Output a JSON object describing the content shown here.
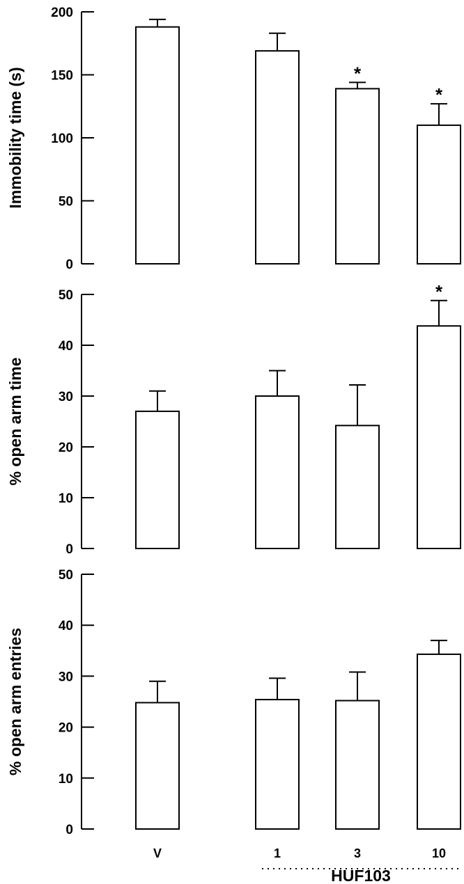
{
  "chart_data": [
    {
      "type": "bar",
      "title": "",
      "ylabel": "Immobility time (s)",
      "ylim": [
        0,
        200
      ],
      "yticks": [
        0,
        50,
        100,
        150,
        200
      ],
      "categories": [
        "V",
        "1",
        "3",
        "10"
      ],
      "values": [
        188,
        169,
        139,
        110
      ],
      "errors": [
        6,
        14,
        5,
        17
      ],
      "significance": [
        "",
        "",
        "*",
        "*"
      ],
      "bar_fill": "#ffffff",
      "bar_stroke": "#000000"
    },
    {
      "type": "bar",
      "title": "",
      "ylabel": "% open arm time",
      "ylim": [
        0,
        50
      ],
      "yticks": [
        0,
        10,
        20,
        30,
        40,
        50
      ],
      "categories": [
        "V",
        "1",
        "3",
        "10"
      ],
      "values": [
        27,
        30,
        24.2,
        43.8
      ],
      "errors": [
        4,
        5,
        8,
        5
      ],
      "significance": [
        "",
        "",
        "",
        "*"
      ],
      "bar_fill": "#ffffff",
      "bar_stroke": "#000000"
    },
    {
      "type": "bar",
      "title": "",
      "ylabel": "% open arm entries",
      "ylim": [
        0,
        50
      ],
      "yticks": [
        0,
        10,
        20,
        30,
        40,
        50
      ],
      "categories": [
        "V",
        "1",
        "3",
        "10"
      ],
      "values": [
        24.8,
        25.4,
        25.2,
        34.3
      ],
      "errors": [
        4.2,
        4.2,
        5.6,
        2.7
      ],
      "significance": [
        "",
        "",
        "",
        ""
      ],
      "bar_fill": "#ffffff",
      "bar_stroke": "#000000"
    }
  ],
  "x_tick_labels": [
    "V",
    "1",
    "3",
    "10"
  ],
  "group_label": "HUF103"
}
